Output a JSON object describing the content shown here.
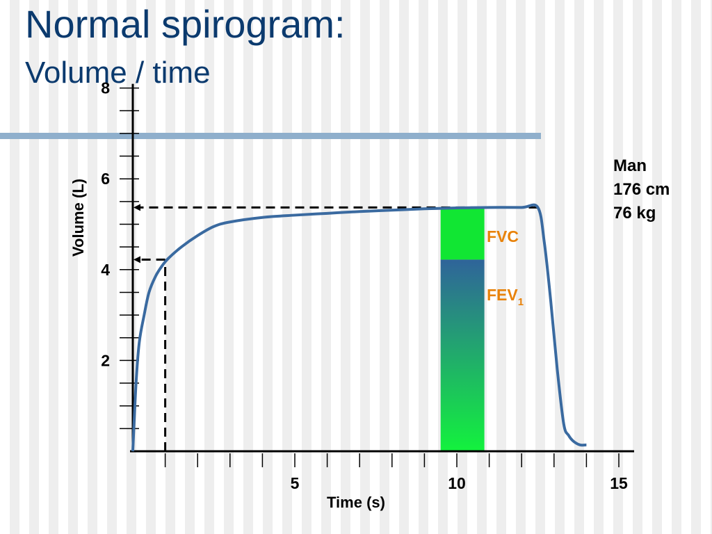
{
  "slide": {
    "title": "Normal spirogram:",
    "subtitle": "Volume / time"
  },
  "colors": {
    "title": "#0b3a6e",
    "accent_rule": "#8fafcc",
    "curve": "#3a6aa0",
    "fvc_fill": "#11e633",
    "fev1_top": "#2f649a",
    "fev1_bottom": "#13f23d",
    "annotation": "#e8820a"
  },
  "subject": {
    "sex": "Man",
    "height": "176 cm",
    "weight": "76 kg"
  },
  "chart_data": {
    "type": "line",
    "title": "Normal spirogram: Volume / time",
    "xlabel": "Time (s)",
    "ylabel": "Volume  (L)",
    "xlim": [
      0,
      15
    ],
    "ylim": [
      0,
      8
    ],
    "x_ticks": [
      5,
      10,
      15
    ],
    "y_ticks": [
      2,
      4,
      6,
      8
    ],
    "x_minor_step": 1,
    "y_minor_step": 0.5,
    "series": [
      {
        "name": "Volume",
        "x": [
          0,
          0.1,
          0.2,
          0.35,
          0.5,
          0.7,
          0.9,
          1.1,
          1.5,
          2,
          2.5,
          3,
          4,
          5,
          6,
          7,
          8,
          9,
          10,
          11,
          12,
          12.5,
          12.7,
          12.9,
          13.1,
          13.3,
          13.45,
          13.6,
          13.8,
          14.0
        ],
        "y": [
          0,
          1.5,
          2.4,
          3.0,
          3.5,
          3.85,
          4.08,
          4.25,
          4.5,
          4.75,
          4.95,
          5.05,
          5.15,
          5.2,
          5.24,
          5.28,
          5.31,
          5.34,
          5.36,
          5.37,
          5.37,
          5.37,
          4.6,
          3.3,
          1.8,
          0.6,
          0.35,
          0.22,
          0.14,
          0.14
        ]
      }
    ],
    "annotations": {
      "fvc_label": "FVC",
      "fev1_label": "FEV",
      "fev1_subscript": "1",
      "fvc_value": 5.37,
      "fev1_value": 4.22,
      "fev1_time": 1,
      "bar_x_range": [
        9.5,
        10.85
      ]
    }
  }
}
